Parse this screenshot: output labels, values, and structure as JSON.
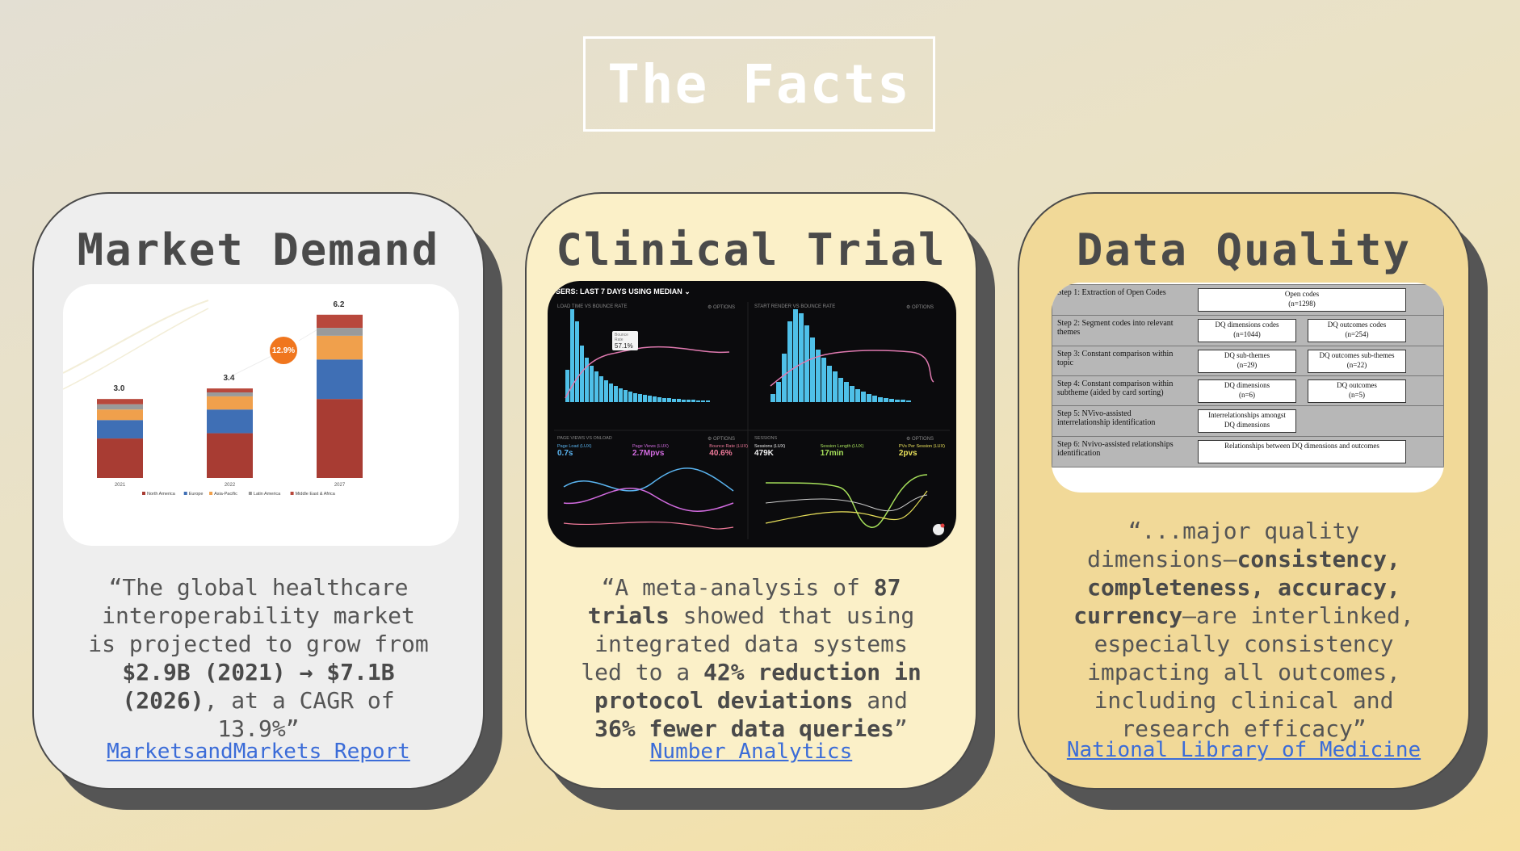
{
  "title": "The Facts",
  "cards": {
    "market": {
      "title": "Market Demand",
      "quote_line1": "“The global healthcare",
      "quote_line2": "interoperability market",
      "quote_line3": "is projected to grow from",
      "quote_bold1": "$2.9B (2021) → $7.1B",
      "quote_bold2": "(2026)",
      "quote_rest": ", at a CAGR of",
      "quote_line6": "13.9%”",
      "link": "MarketsandMarkets Report"
    },
    "clinical": {
      "title": "Clinical Trial",
      "q1a": "“A meta-analysis of ",
      "q1b": "87",
      "q2a": "trials",
      "q2b": " showed that using",
      "q3": "integrated data systems",
      "q4a": "led to a ",
      "q4b": "42% reduction in",
      "q5a": "protocol deviations",
      "q5b": " and",
      "q6a": "36% fewer data queries",
      "q6b": "”",
      "link": "Number Analytics"
    },
    "quality": {
      "title": "Data Quality",
      "q1": "“...major quality",
      "q2a": "dimensions—",
      "q2b": "consistency,",
      "q3": "completeness, accuracy,",
      "q4a": "currency",
      "q4b": "—are interlinked,",
      "q5": "especially consistency",
      "q6": "impacting all outcomes,",
      "q7": "including clinical and",
      "q8": "research efficacy”",
      "link": "National Library of Medicine"
    }
  },
  "chart_data": {
    "type": "bar",
    "categories": [
      "2021",
      "2022",
      "2027"
    ],
    "totals": [
      "3.0",
      "3.4",
      "6.2"
    ],
    "cagr_badge": "12.9%",
    "series": [
      {
        "name": "North America",
        "values": [
          1.5,
          1.7,
          3.0
        ]
      },
      {
        "name": "Europe",
        "values": [
          0.7,
          0.9,
          1.5
        ]
      },
      {
        "name": "Asia-Pacific",
        "values": [
          0.4,
          0.5,
          0.9
        ]
      },
      {
        "name": "Latin America",
        "values": [
          0.2,
          0.15,
          0.3
        ]
      },
      {
        "name": "Middle East & Africa",
        "values": [
          0.2,
          0.15,
          0.5
        ]
      }
    ],
    "colors": [
      "#a83c33",
      "#3f6fb5",
      "#f0a04c",
      "#9a9a9a",
      "#b8483c"
    ],
    "ylim": [
      0,
      6.5
    ]
  },
  "dashboard": {
    "header": "SERS: LAST 7 DAYS USING MEDIAN ⌄",
    "panel1_title": "LOAD TIME VS BOUNCE RATE",
    "panel2_title": "START RENDER VS BOUNCE RATE",
    "options": "⚙ OPTIONS",
    "tooltip_label": "Bounce Rate",
    "tooltip_value": "57.1%",
    "lower_left_title": "PAGE VIEWS VS ONLOAD",
    "lower_right_title": "SESSIONS",
    "metrics_left": [
      {
        "label": "Page Load (LUX)",
        "value": "0.7s",
        "color": "#5ab4f0"
      },
      {
        "label": "Page Views (LUX)",
        "value": "2.7Mpvs",
        "color": "#d26be0"
      },
      {
        "label": "Bounce Rate (LUX)",
        "value": "40.6%",
        "color": "#f07a9a"
      }
    ],
    "metrics_right": [
      {
        "label": "Sessions (LUX)",
        "value": "479K",
        "color": "#eeeeee"
      },
      {
        "label": "Session Length (LUX)",
        "value": "17min",
        "color": "#a6e05a"
      },
      {
        "label": "PVs Per Session (LUX)",
        "value": "2pvs",
        "color": "#e8e05a"
      }
    ]
  },
  "flowchart": {
    "steps": [
      {
        "label": "Step 1: Extraction of Open Codes",
        "boxes": [
          "Open codes\n(n=1298)"
        ]
      },
      {
        "label": "Step 2: Segment codes into relevant themes",
        "boxes": [
          "DQ dimensions codes\n(n=1044)",
          "DQ outcomes codes\n(n=254)"
        ]
      },
      {
        "label": "Step 3: Constant comparison within topic",
        "boxes": [
          "DQ sub-themes\n(n=29)",
          "DQ outcomes sub-themes\n(n=22)"
        ]
      },
      {
        "label": "Step 4: Constant comparison within subtheme (aided by card sorting)",
        "boxes": [
          "DQ dimensions\n(n=6)",
          "DQ outcomes\n(n=5)"
        ]
      },
      {
        "label": "Step 5: NVivo-assisted interrelationship identification",
        "boxes": [
          "Interrelationships amongst\nDQ dimensions"
        ]
      },
      {
        "label": "Step 6: Nvivo-assisted relationships identification",
        "boxes": [
          "Relationships between DQ dimensions and outcomes"
        ]
      }
    ]
  }
}
